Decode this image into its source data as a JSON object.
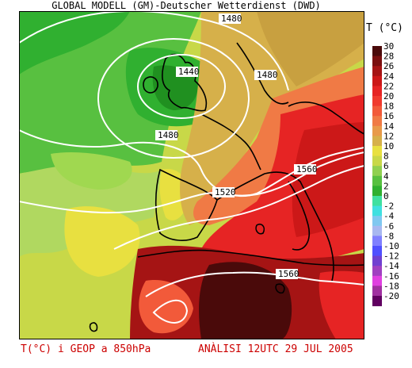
{
  "title": "GLOBAL MODELL (GM)-Deutscher Wetterdienst (DWD)",
  "legend": {
    "title": "T (°C)",
    "labels": [
      "30",
      "28",
      "26",
      "24",
      "22",
      "20",
      "18",
      "16",
      "14",
      "12",
      "10",
      "8",
      "6",
      "4",
      "2",
      "0",
      "-2",
      "-4",
      "-6",
      "-8",
      "-10",
      "-12",
      "-14",
      "-16",
      "-18",
      "-20"
    ],
    "colors": [
      "#4a0a0a",
      "#7a0f0f",
      "#a51414",
      "#cc1818",
      "#e62424",
      "#f03a2e",
      "#f25a3a",
      "#f07a45",
      "#e89a4a",
      "#d6b04a",
      "#e8e040",
      "#c8d848",
      "#90d050",
      "#58c040",
      "#30b030",
      "#40e0a0",
      "#40e0e0",
      "#80c8f0",
      "#a8b8f0",
      "#8080ff",
      "#5050ff",
      "#7040d0",
      "#a040c0",
      "#e040e0",
      "#a030a0",
      "#600060"
    ]
  },
  "contours": [
    {
      "label": "1480"
    },
    {
      "label": "1440"
    },
    {
      "label": "1480"
    },
    {
      "label": "1480"
    },
    {
      "label": "1520"
    },
    {
      "label": "1560"
    },
    {
      "label": "1560"
    }
  ],
  "caption": {
    "left": "T(°C) i GEOP a 850hPa",
    "right": "ANÀLISI 12UTC 29 JUL 2005"
  }
}
